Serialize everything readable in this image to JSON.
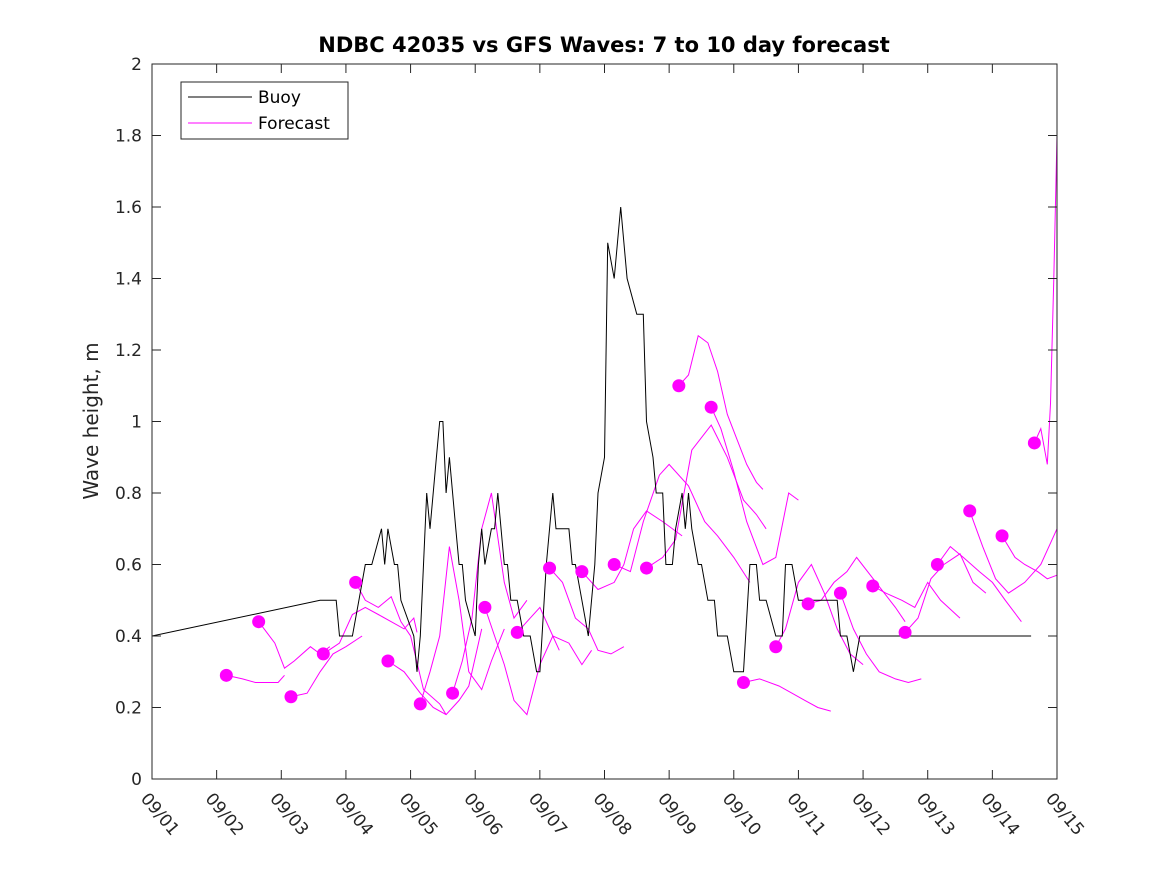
{
  "chart_data": {
    "type": "line",
    "title": "NDBC 42035 vs GFS Waves: 7 to 10 day forecast",
    "xlabel": "",
    "ylabel": "Wave height, m",
    "x_unit": "days since 09/01",
    "xlim": [
      0,
      14
    ],
    "ylim": [
      0,
      2
    ],
    "x_ticks": [
      0,
      1,
      2,
      3,
      4,
      5,
      6,
      7,
      8,
      9,
      10,
      11,
      12,
      13,
      14
    ],
    "x_tick_labels": [
      "09/01",
      "09/02",
      "09/03",
      "09/04",
      "09/05",
      "09/06",
      "09/07",
      "09/08",
      "09/09",
      "09/10",
      "09/11",
      "09/12",
      "09/13",
      "09/14",
      "09/15"
    ],
    "y_ticks": [
      0,
      0.2,
      0.4,
      0.6,
      0.8,
      1,
      1.2,
      1.4,
      1.6,
      1.8,
      2
    ],
    "y_tick_labels": [
      "0",
      "0.2",
      "0.4",
      "0.6",
      "0.8",
      "1",
      "1.2",
      "1.4",
      "1.6",
      "1.8",
      "2"
    ],
    "colors": {
      "buoy": "#000000",
      "forecast": "#ff00ff",
      "axes": "#262626"
    },
    "legend": {
      "position": "top-left",
      "entries": [
        {
          "label": "Buoy",
          "color": "#000000"
        },
        {
          "label": "Forecast",
          "color": "#ff00ff"
        }
      ]
    },
    "buoy": {
      "name": "Buoy",
      "x": [
        0,
        2.6,
        2.85,
        2.9,
        3.1,
        3.2,
        3.3,
        3.4,
        3.55,
        3.6,
        3.65,
        3.75,
        3.8,
        3.85,
        4.05,
        4.1,
        4.15,
        4.2,
        4.25,
        4.3,
        4.4,
        4.45,
        4.5,
        4.55,
        4.6,
        4.7,
        4.75,
        4.8,
        4.85,
        5.0,
        5.05,
        5.1,
        5.15,
        5.25,
        5.3,
        5.35,
        5.45,
        5.5,
        5.55,
        5.65,
        5.75,
        5.85,
        5.95,
        6.0,
        6.1,
        6.2,
        6.25,
        6.35,
        6.45,
        6.5,
        6.55,
        6.65,
        6.75,
        6.85,
        6.9,
        7.0,
        7.05,
        7.15,
        7.25,
        7.35,
        7.5,
        7.6,
        7.65,
        7.75,
        7.8,
        7.9,
        7.95,
        8.05,
        8.1,
        8.2,
        8.25,
        8.3,
        8.35,
        8.45,
        8.5,
        8.6,
        8.7,
        8.75,
        8.85,
        8.9,
        9.0,
        9.1,
        9.15,
        9.25,
        9.35,
        9.4,
        9.5,
        9.65,
        9.75,
        9.8,
        9.9,
        10.0,
        10.1,
        10.2,
        10.25,
        10.4,
        10.5,
        10.6,
        10.65,
        10.75,
        10.85,
        10.95,
        11.05,
        11.15,
        11.3,
        11.4,
        13.1,
        13.15,
        13.2,
        13.3,
        13.4,
        13.45,
        13.6
      ],
      "y": [
        0.4,
        0.5,
        0.5,
        0.4,
        0.4,
        0.5,
        0.6,
        0.6,
        0.7,
        0.6,
        0.7,
        0.6,
        0.6,
        0.5,
        0.4,
        0.3,
        0.4,
        0.6,
        0.8,
        0.7,
        0.9,
        1.0,
        1.0,
        0.8,
        0.9,
        0.7,
        0.6,
        0.6,
        0.5,
        0.4,
        0.6,
        0.7,
        0.6,
        0.7,
        0.7,
        0.8,
        0.6,
        0.6,
        0.5,
        0.5,
        0.4,
        0.4,
        0.3,
        0.3,
        0.6,
        0.8,
        0.7,
        0.7,
        0.7,
        0.6,
        0.6,
        0.5,
        0.4,
        0.6,
        0.8,
        0.9,
        1.5,
        1.4,
        1.6,
        1.4,
        1.3,
        1.3,
        1.0,
        0.9,
        0.8,
        0.8,
        0.6,
        0.6,
        0.7,
        0.8,
        0.7,
        0.8,
        0.7,
        0.6,
        0.6,
        0.5,
        0.5,
        0.4,
        0.4,
        0.4,
        0.3,
        0.3,
        0.3,
        0.6,
        0.6,
        0.5,
        0.5,
        0.4,
        0.4,
        0.6,
        0.6,
        0.5,
        0.5,
        0.5,
        0.5,
        0.5,
        0.5,
        0.5,
        0.4,
        0.4,
        0.3,
        0.4,
        0.4,
        0.4,
        0.4,
        0.4,
        0.4,
        0.4,
        0.4,
        0.4,
        0.4,
        0.4,
        0.4
      ]
    },
    "forecast_series": [
      {
        "x": [
          1.15,
          1.4,
          1.6,
          1.8,
          1.95,
          2.05
        ],
        "y": [
          0.29,
          0.28,
          0.27,
          0.27,
          0.27,
          0.29
        ]
      },
      {
        "x": [
          1.65,
          1.9,
          2.05,
          2.2,
          2.45,
          2.6,
          2.75
        ],
        "y": [
          0.44,
          0.38,
          0.31,
          0.33,
          0.37,
          0.35,
          0.37
        ]
      },
      {
        "x": [
          2.15,
          2.4,
          2.6,
          2.8,
          3.0,
          3.25
        ],
        "y": [
          0.23,
          0.24,
          0.3,
          0.35,
          0.37,
          0.4
        ]
      },
      {
        "x": [
          2.65,
          2.9,
          3.1,
          3.3,
          3.5,
          3.7,
          3.9,
          4.05,
          4.1
        ],
        "y": [
          0.35,
          0.38,
          0.46,
          0.48,
          0.46,
          0.44,
          0.42,
          0.45,
          0.41
        ]
      },
      {
        "x": [
          3.15,
          3.3,
          3.5,
          3.7,
          3.85,
          4.0,
          4.2,
          4.45,
          4.55
        ],
        "y": [
          0.55,
          0.5,
          0.48,
          0.51,
          0.44,
          0.4,
          0.25,
          0.21,
          0.18
        ]
      },
      {
        "x": [
          3.65,
          3.9,
          4.15,
          4.35,
          4.55,
          4.75,
          4.9,
          5.1
        ],
        "y": [
          0.33,
          0.3,
          0.24,
          0.2,
          0.18,
          0.22,
          0.26,
          0.42
        ]
      },
      {
        "x": [
          4.15,
          4.3,
          4.45,
          4.6,
          4.75,
          4.9,
          5.1,
          5.25,
          5.45
        ],
        "y": [
          0.21,
          0.3,
          0.4,
          0.65,
          0.5,
          0.3,
          0.25,
          0.33,
          0.42
        ]
      },
      {
        "x": [
          4.65,
          4.8,
          4.95,
          5.1,
          5.25,
          5.45,
          5.6,
          5.8
        ],
        "y": [
          0.24,
          0.33,
          0.45,
          0.7,
          0.8,
          0.55,
          0.45,
          0.5
        ]
      },
      {
        "x": [
          5.15,
          5.3,
          5.45,
          5.6,
          5.8,
          6.0,
          6.2,
          6.3
        ],
        "y": [
          0.48,
          0.4,
          0.32,
          0.22,
          0.18,
          0.32,
          0.4,
          0.36
        ]
      },
      {
        "x": [
          5.65,
          5.85,
          6.0,
          6.2,
          6.45,
          6.65,
          6.8
        ],
        "y": [
          0.41,
          0.45,
          0.48,
          0.4,
          0.38,
          0.32,
          0.36
        ]
      },
      {
        "x": [
          6.15,
          6.35,
          6.55,
          6.75,
          6.9,
          7.1,
          7.3
        ],
        "y": [
          0.59,
          0.55,
          0.45,
          0.42,
          0.36,
          0.35,
          0.37
        ]
      },
      {
        "x": [
          6.65,
          6.9,
          7.15,
          7.3,
          7.45,
          7.65,
          7.9,
          8.2
        ],
        "y": [
          0.58,
          0.53,
          0.55,
          0.6,
          0.7,
          0.75,
          0.72,
          0.68
        ]
      },
      {
        "x": [
          7.15,
          7.4,
          7.6,
          7.85,
          8.0,
          8.3,
          8.55,
          8.75,
          9.0,
          9.25
        ],
        "y": [
          0.6,
          0.58,
          0.72,
          0.85,
          0.88,
          0.82,
          0.72,
          0.68,
          0.62,
          0.55
        ]
      },
      {
        "x": [
          7.65,
          7.9,
          8.1,
          8.35,
          8.65,
          8.9,
          9.15,
          9.35,
          9.5
        ],
        "y": [
          0.59,
          0.62,
          0.67,
          0.92,
          0.99,
          0.9,
          0.78,
          0.74,
          0.7
        ]
      },
      {
        "x": [
          8.15,
          8.3,
          8.45,
          8.6,
          8.75,
          8.9,
          9.05,
          9.2,
          9.35,
          9.45
        ],
        "y": [
          1.1,
          1.13,
          1.24,
          1.22,
          1.14,
          1.02,
          0.95,
          0.88,
          0.83,
          0.81
        ]
      },
      {
        "x": [
          8.65,
          8.8,
          9.0,
          9.2,
          9.45,
          9.65,
          9.85,
          10.0
        ],
        "y": [
          1.04,
          0.98,
          0.86,
          0.72,
          0.6,
          0.62,
          0.8,
          0.78
        ]
      },
      {
        "x": [
          9.15,
          9.4,
          9.7,
          9.9,
          10.1,
          10.3,
          10.5
        ],
        "y": [
          0.27,
          0.28,
          0.26,
          0.24,
          0.22,
          0.2,
          0.19
        ]
      },
      {
        "x": [
          9.65,
          9.8,
          10.0,
          10.2,
          10.4,
          10.6,
          10.8,
          11.0
        ],
        "y": [
          0.37,
          0.42,
          0.55,
          0.6,
          0.52,
          0.42,
          0.35,
          0.32
        ]
      },
      {
        "x": [
          10.15,
          10.35,
          10.55,
          10.75,
          10.9,
          11.2,
          11.5,
          11.65
        ],
        "y": [
          0.49,
          0.5,
          0.55,
          0.58,
          0.62,
          0.55,
          0.48,
          0.44
        ]
      },
      {
        "x": [
          10.65,
          10.85,
          11.05,
          11.25,
          11.5,
          11.7,
          11.9
        ],
        "y": [
          0.52,
          0.42,
          0.35,
          0.3,
          0.28,
          0.27,
          0.28
        ]
      },
      {
        "x": [
          11.15,
          11.35,
          11.6,
          11.8,
          12.0,
          12.2,
          12.5
        ],
        "y": [
          0.54,
          0.52,
          0.5,
          0.48,
          0.55,
          0.5,
          0.45
        ]
      },
      {
        "x": [
          11.65,
          11.85,
          12.05,
          12.25,
          12.5,
          12.7,
          12.9
        ],
        "y": [
          0.41,
          0.45,
          0.56,
          0.6,
          0.63,
          0.55,
          0.52
        ]
      },
      {
        "x": [
          12.15,
          12.35,
          12.55,
          12.8,
          13.0,
          13.2,
          13.45
        ],
        "y": [
          0.6,
          0.65,
          0.62,
          0.58,
          0.55,
          0.5,
          0.44
        ]
      },
      {
        "x": [
          12.65,
          12.85,
          13.05,
          13.25,
          13.5,
          13.75,
          14.0
        ],
        "y": [
          0.75,
          0.65,
          0.56,
          0.52,
          0.55,
          0.6,
          0.7
        ]
      },
      {
        "x": [
          13.15,
          13.35,
          13.5,
          13.7,
          13.85,
          14.0
        ],
        "y": [
          0.68,
          0.62,
          0.6,
          0.58,
          0.56,
          0.57
        ]
      },
      {
        "x": [
          13.65,
          13.75,
          13.85,
          13.9,
          13.95,
          14.0
        ],
        "y": [
          0.94,
          0.98,
          0.88,
          1.05,
          1.4,
          1.8
        ]
      }
    ]
  }
}
